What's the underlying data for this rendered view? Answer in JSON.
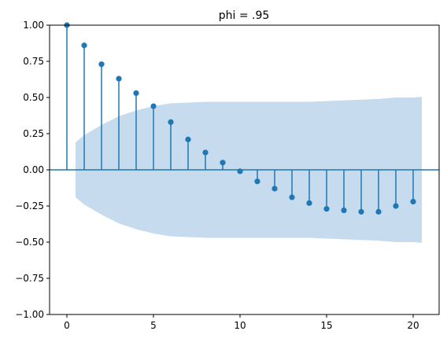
{
  "chart_data": {
    "type": "stem",
    "title": "phi = .95",
    "xlabel": "",
    "ylabel": "",
    "xlim": [
      -1,
      21.5
    ],
    "ylim": [
      -1.0,
      1.0
    ],
    "x_ticks": [
      0,
      5,
      10,
      15,
      20
    ],
    "x_tick_labels": [
      "0",
      "5",
      "10",
      "15",
      "20"
    ],
    "y_ticks": [
      -1.0,
      -0.75,
      -0.5,
      -0.25,
      0.0,
      0.25,
      0.5,
      0.75,
      1.0
    ],
    "y_tick_labels": [
      "−1.00",
      "−0.75",
      "−0.50",
      "−0.25",
      "0.00",
      "0.25",
      "0.50",
      "0.75",
      "1.00"
    ],
    "grid": false,
    "series": [
      {
        "lags": [
          0,
          1,
          2,
          3,
          4,
          5,
          6,
          7,
          8,
          9,
          10,
          11,
          12,
          13,
          14,
          15,
          16,
          17,
          18,
          19,
          20
        ],
        "values": [
          1.0,
          0.86,
          0.73,
          0.63,
          0.53,
          0.44,
          0.33,
          0.21,
          0.12,
          0.05,
          -0.01,
          -0.08,
          -0.13,
          -0.19,
          -0.23,
          -0.27,
          -0.28,
          -0.29,
          -0.29,
          -0.25,
          -0.22
        ]
      }
    ],
    "confidence_band": {
      "x": [
        0.5,
        1,
        2,
        3,
        4,
        5,
        6,
        7,
        8,
        9,
        10,
        11,
        12,
        13,
        14,
        15,
        16,
        17,
        18,
        19,
        20,
        20.5
      ],
      "upper": [
        0.19,
        0.24,
        0.31,
        0.37,
        0.41,
        0.44,
        0.46,
        0.465,
        0.47,
        0.47,
        0.47,
        0.47,
        0.47,
        0.47,
        0.47,
        0.475,
        0.48,
        0.485,
        0.49,
        0.5,
        0.5,
        0.505
      ]
    },
    "colors": {
      "stem": "#1f77b4",
      "band": "#c6dbee",
      "axis": "#000000"
    }
  }
}
